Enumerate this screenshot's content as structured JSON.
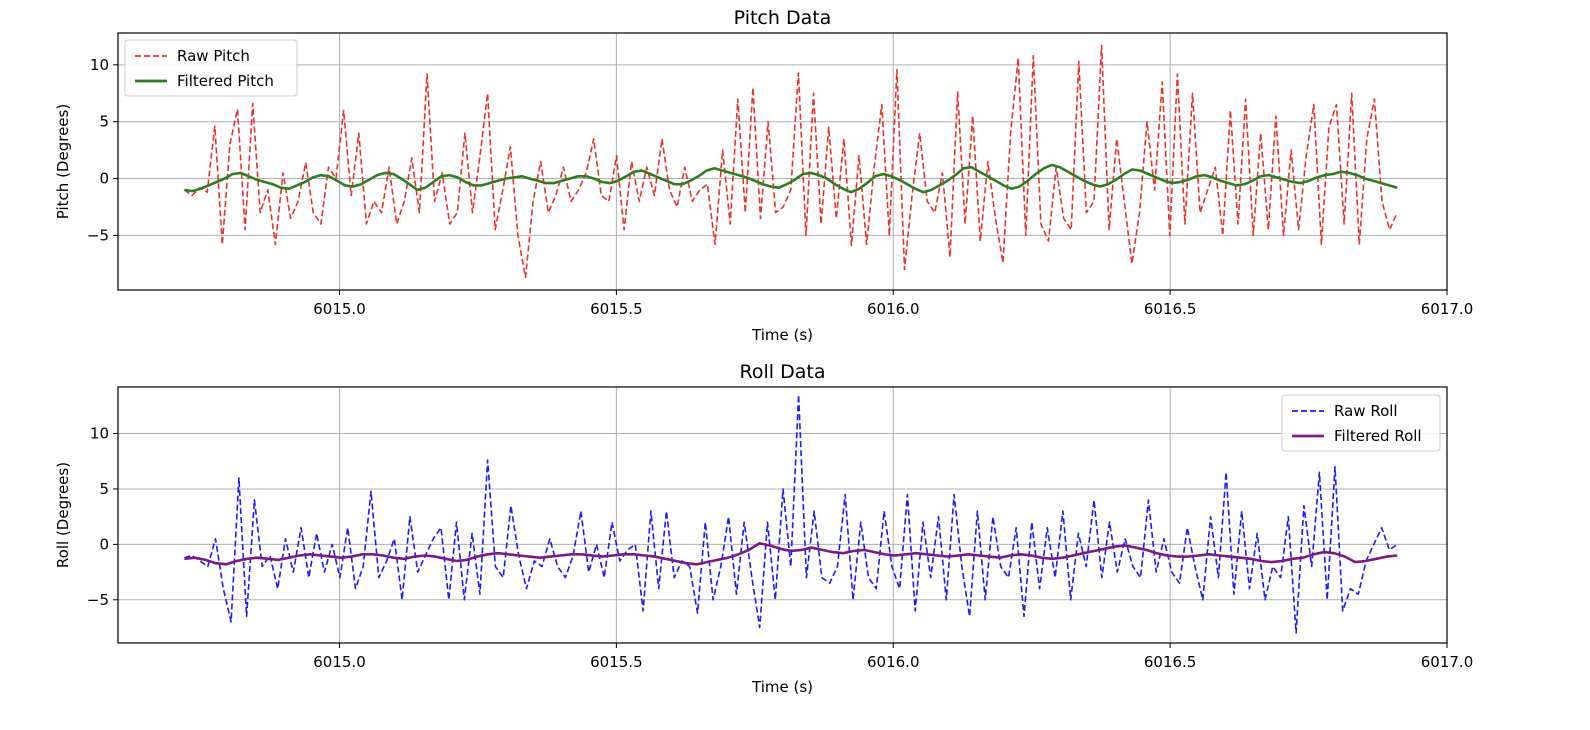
{
  "chart_data": [
    {
      "type": "line",
      "title": "Pitch Data",
      "xlabel": "Time (s)",
      "ylabel": "Pitch (Degrees)",
      "xlim": [
        6014.6,
        6017.0
      ],
      "ylim": [
        -9.8,
        12.8
      ],
      "xticks": [
        6015.0,
        6015.5,
        6016.0,
        6016.5,
        6017.0
      ],
      "xtick_labels": [
        "6015.0",
        "6015.5",
        "6016.0",
        "6016.5",
        "6017.0"
      ],
      "yticks": [
        -5,
        0,
        5,
        10
      ],
      "ytick_labels": [
        "−5",
        "0",
        "5",
        "10"
      ],
      "grid": true,
      "legend_position": "top-left",
      "x_start": 6014.72,
      "x_end": 6016.91,
      "series": [
        {
          "name": "Raw Pitch",
          "color": "#e8322b",
          "style": "dashed",
          "values": [
            -1.0,
            -1.5,
            -0.8,
            -1.2,
            4.6,
            -5.8,
            3.0,
            6.1,
            -4.5,
            6.6,
            -3.0,
            -1.0,
            -5.8,
            0.5,
            -3.5,
            -2.0,
            1.4,
            -3.0,
            -4.0,
            1.0,
            0.0,
            6.0,
            -1.5,
            4.0,
            -4.0,
            -2.0,
            -3.0,
            1.0,
            -4.0,
            -2.0,
            1.8,
            -3.0,
            9.2,
            -2.0,
            0.5,
            -4.0,
            -3.0,
            4.0,
            -3.0,
            2.0,
            7.5,
            -4.5,
            -1.0,
            2.8,
            -5.0,
            -8.7,
            -2.0,
            1.5,
            -3.0,
            -1.5,
            1.0,
            -2.0,
            -1.0,
            0.5,
            3.5,
            -1.5,
            -2.0,
            2.0,
            -4.5,
            1.5,
            -2.0,
            1.0,
            -1.5,
            3.5,
            -1.0,
            -2.5,
            1.0,
            -2.0,
            -1.0,
            -0.5,
            -5.8,
            2.5,
            -4.0,
            7.0,
            -3.0,
            8.0,
            -3.5,
            5.0,
            -3.0,
            -2.5,
            -1.0,
            9.3,
            -5.0,
            7.5,
            -4.0,
            4.5,
            -3.5,
            3.5,
            -5.9,
            2.0,
            -5.8,
            1.0,
            6.5,
            -5.0,
            9.6,
            -8.0,
            -1.5,
            4.0,
            -2.0,
            -3.0,
            0.5,
            -6.9,
            7.6,
            -4.0,
            5.5,
            -5.5,
            1.5,
            -3.5,
            -7.4,
            4.0,
            10.6,
            -5.0,
            10.8,
            -4.0,
            -5.5,
            1.0,
            -3.5,
            -4.5,
            10.3,
            -3.0,
            -2.0,
            11.7,
            -4.5,
            3.5,
            -2.0,
            -7.5,
            -3.0,
            5.0,
            -1.0,
            8.5,
            -5.0,
            9.2,
            -4.0,
            7.5,
            -3.0,
            -1.0,
            1.0,
            -5.0,
            6.0,
            -4.0,
            7.0,
            -5.0,
            4.0,
            -4.5,
            5.5,
            -5.0,
            2.5,
            -4.5,
            2.0,
            6.5,
            -5.8,
            4.5,
            6.5,
            -4.0,
            7.5,
            -5.8,
            3.5,
            7.0,
            -2.0,
            -4.5,
            -3.0
          ],
          "x_step": 0.01377
        },
        {
          "name": "Filtered Pitch",
          "color": "#2e7d22",
          "style": "solid",
          "values": [
            -1.0,
            -1.1,
            -0.9,
            -0.6,
            -0.3,
            0.0,
            0.4,
            0.5,
            0.2,
            -0.1,
            -0.3,
            -0.5,
            -0.8,
            -0.9,
            -0.6,
            -0.3,
            0.1,
            0.3,
            0.2,
            -0.2,
            -0.6,
            -0.7,
            -0.5,
            -0.1,
            0.3,
            0.5,
            0.4,
            0.0,
            -0.5,
            -1.0,
            -0.8,
            -0.3,
            0.2,
            0.3,
            0.1,
            -0.3,
            -0.6,
            -0.6,
            -0.4,
            -0.2,
            0.0,
            0.1,
            0.2,
            0.0,
            -0.2,
            -0.4,
            -0.4,
            -0.2,
            0.0,
            0.2,
            0.2,
            0.0,
            -0.3,
            -0.4,
            -0.2,
            0.2,
            0.6,
            0.7,
            0.4,
            0.1,
            -0.2,
            -0.5,
            -0.5,
            -0.2,
            0.2,
            0.7,
            0.9,
            0.7,
            0.5,
            0.3,
            0.1,
            -0.2,
            -0.5,
            -0.7,
            -0.8,
            -0.5,
            -0.1,
            0.4,
            0.5,
            0.3,
            0.0,
            -0.5,
            -0.9,
            -1.2,
            -0.9,
            -0.4,
            0.2,
            0.4,
            0.2,
            -0.1,
            -0.5,
            -0.9,
            -1.2,
            -1.0,
            -0.6,
            -0.2,
            0.3,
            0.9,
            1.0,
            0.6,
            0.2,
            -0.2,
            -0.6,
            -0.9,
            -0.7,
            -0.2,
            0.4,
            0.9,
            1.2,
            1.0,
            0.6,
            0.2,
            -0.2,
            -0.5,
            -0.7,
            -0.5,
            -0.1,
            0.4,
            0.8,
            0.7,
            0.4,
            0.1,
            -0.2,
            -0.4,
            -0.3,
            -0.1,
            0.2,
            0.3,
            0.1,
            -0.2,
            -0.4,
            -0.6,
            -0.5,
            -0.2,
            0.2,
            0.3,
            0.1,
            -0.1,
            -0.3,
            -0.4,
            -0.2,
            0.1,
            0.3,
            0.4,
            0.6,
            0.5,
            0.3,
            0.0,
            -0.2,
            -0.4,
            -0.6,
            -0.8
          ],
          "x_step": 0.01466
        }
      ]
    },
    {
      "type": "line",
      "title": "Roll Data",
      "xlabel": "Time (s)",
      "ylabel": "Roll (Degrees)",
      "xlim": [
        6014.6,
        6017.0
      ],
      "ylim": [
        -8.9,
        14.2
      ],
      "xticks": [
        6015.0,
        6015.5,
        6016.0,
        6016.5,
        6017.0
      ],
      "xtick_labels": [
        "6015.0",
        "6015.5",
        "6016.0",
        "6016.5",
        "6017.0"
      ],
      "yticks": [
        -5,
        0,
        5,
        10
      ],
      "ytick_labels": [
        "−5",
        "0",
        "5",
        "10"
      ],
      "grid": true,
      "legend_position": "top-right",
      "x_start": 6014.72,
      "x_end": 6016.91,
      "series": [
        {
          "name": "Raw Roll",
          "color": "#1a1aff",
          "style": "dashed",
          "values": [
            -1.2,
            -1.0,
            -1.5,
            -2.0,
            0.5,
            -4.0,
            -7.0,
            6.0,
            -6.5,
            4.0,
            -2.0,
            -1.0,
            -4.0,
            0.5,
            -2.5,
            1.5,
            -3.0,
            1.0,
            -2.5,
            0.0,
            -3.0,
            1.5,
            -4.0,
            -2.0,
            4.8,
            -3.0,
            -1.5,
            0.5,
            -5.0,
            2.5,
            -2.5,
            -1.0,
            0.5,
            1.5,
            -5.0,
            2.0,
            -5.0,
            1.0,
            -4.5,
            7.6,
            -2.0,
            -3.0,
            3.5,
            -1.0,
            -4.0,
            -1.5,
            -2.0,
            0.5,
            -2.0,
            -3.0,
            -1.0,
            3.0,
            -2.5,
            0.0,
            -3.0,
            2.0,
            -1.5,
            -0.5,
            0.0,
            -6.0,
            3.0,
            -4.0,
            3.0,
            -3.0,
            -1.5,
            -2.0,
            -6.2,
            2.0,
            -5.0,
            -2.0,
            2.5,
            -4.5,
            2.0,
            -3.0,
            -7.5,
            2.0,
            -5.0,
            5.0,
            -2.0,
            13.5,
            -3.0,
            3.0,
            -3.0,
            -3.5,
            -2.0,
            4.5,
            -5.0,
            2.0,
            -3.0,
            -4.0,
            3.0,
            -2.0,
            -4.0,
            4.5,
            -6.0,
            2.0,
            -3.0,
            2.5,
            -5.0,
            4.5,
            -2.0,
            -6.5,
            3.0,
            -5.0,
            2.5,
            -2.0,
            -3.0,
            1.5,
            -6.5,
            2.0,
            -4.0,
            1.5,
            -3.0,
            3.0,
            -5.0,
            1.0,
            -2.0,
            4.0,
            -3.0,
            2.0,
            -2.5,
            0.5,
            -2.0,
            -3.0,
            4.0,
            -2.5,
            0.5,
            -2.5,
            -3.5,
            1.5,
            -2.0,
            -5.0,
            2.5,
            -3.0,
            6.5,
            -4.5,
            3.0,
            -4.0,
            1.0,
            -5.0,
            -2.0,
            -3.0,
            2.5,
            -8.0,
            3.5,
            -2.0,
            6.5,
            -5.0,
            7.0,
            -6.0,
            -4.0,
            -4.5,
            -1.5,
            0.0,
            1.5,
            -0.5,
            0.0
          ],
          "x_step": 0.01377
        },
        {
          "name": "Filtered Roll",
          "color": "#7b1a82",
          "style": "solid",
          "values": [
            -1.3,
            -1.2,
            -1.4,
            -1.7,
            -1.8,
            -1.5,
            -1.3,
            -1.2,
            -1.3,
            -1.4,
            -1.2,
            -1.0,
            -0.9,
            -1.0,
            -1.1,
            -1.2,
            -1.1,
            -0.9,
            -0.9,
            -1.0,
            -1.2,
            -1.3,
            -1.1,
            -1.0,
            -1.1,
            -1.3,
            -1.5,
            -1.4,
            -1.1,
            -0.9,
            -0.8,
            -0.9,
            -1.0,
            -1.1,
            -1.2,
            -1.1,
            -1.0,
            -0.9,
            -0.9,
            -1.0,
            -1.1,
            -1.0,
            -0.9,
            -0.9,
            -1.0,
            -1.1,
            -1.3,
            -1.5,
            -1.7,
            -1.8,
            -1.6,
            -1.4,
            -1.2,
            -0.9,
            -0.5,
            0.1,
            -0.1,
            -0.4,
            -0.6,
            -0.5,
            -0.3,
            -0.5,
            -0.7,
            -0.8,
            -0.6,
            -0.5,
            -0.7,
            -0.9,
            -1.0,
            -0.9,
            -0.8,
            -0.9,
            -1.0,
            -1.1,
            -1.0,
            -0.9,
            -1.0,
            -1.1,
            -1.2,
            -1.0,
            -0.9,
            -1.0,
            -1.2,
            -1.3,
            -1.2,
            -1.0,
            -0.8,
            -0.6,
            -0.4,
            -0.2,
            -0.1,
            -0.3,
            -0.5,
            -0.8,
            -1.0,
            -1.1,
            -1.1,
            -1.0,
            -0.9,
            -1.0,
            -1.1,
            -1.2,
            -1.3,
            -1.5,
            -1.6,
            -1.5,
            -1.3,
            -1.2,
            -0.9,
            -0.7,
            -0.8,
            -1.1,
            -1.6,
            -1.5,
            -1.3,
            -1.1,
            -1.0
          ],
          "x_step": 0.01913
        }
      ]
    }
  ]
}
